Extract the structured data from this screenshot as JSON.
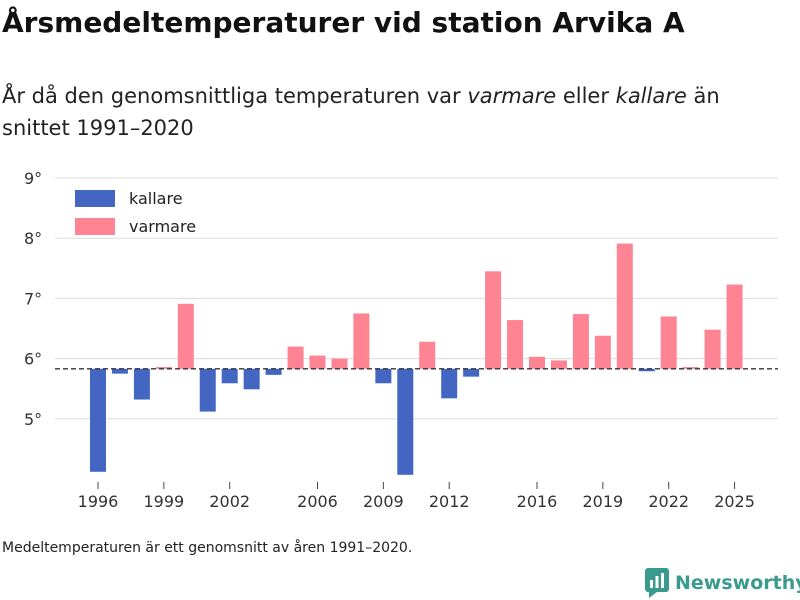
{
  "header": {
    "title": "Årsmedeltemperaturer vid station Arvika A",
    "subtitle_part1": "År då den genomsnittliga temperaturen var ",
    "subtitle_warm": "varmare",
    "subtitle_part2": " eller ",
    "subtitle_cold": "kallare",
    "subtitle_part3": " än snittet 1991–2020"
  },
  "footer": {
    "note": "Medeltemperaturen är ett genomsnitt av åren 1991–2020.",
    "brand": "Newsworthy"
  },
  "colors": {
    "cold": "#4266c2",
    "warm": "#fe8494",
    "brand": "#3a9a8e"
  },
  "chart_data": {
    "type": "bar",
    "title": "Årsmedeltemperaturer vid station Arvika A",
    "baseline": 5.83,
    "ylim": [
      4.0,
      9.0
    ],
    "yticks": [
      5,
      6,
      7,
      8,
      9
    ],
    "ytick_labels": [
      "5°",
      "6°",
      "7°",
      "8°",
      "9°"
    ],
    "xticks": [
      1996,
      1999,
      2002,
      2006,
      2009,
      2012,
      2016,
      2019,
      2022,
      2025
    ],
    "xtick_labels": [
      "1996",
      "1999",
      "2002",
      "2006",
      "2009",
      "2012",
      "2016",
      "2019",
      "2022",
      "2025"
    ],
    "legend": [
      {
        "name": "kallare",
        "key": "cold"
      },
      {
        "name": "varmare",
        "key": "warm"
      }
    ],
    "x": [
      1996,
      1997,
      1998,
      1999,
      2000,
      2001,
      2002,
      2003,
      2004,
      2005,
      2006,
      2007,
      2008,
      2009,
      2010,
      2011,
      2012,
      2013,
      2014,
      2015,
      2016,
      2017,
      2018,
      2019,
      2020,
      2021,
      2022,
      2023,
      2024,
      2025
    ],
    "values": [
      4.12,
      5.75,
      5.32,
      5.86,
      6.91,
      5.12,
      5.59,
      5.49,
      5.73,
      6.2,
      6.05,
      6.0,
      6.75,
      5.59,
      4.07,
      6.28,
      5.34,
      5.7,
      7.45,
      6.64,
      6.03,
      5.97,
      6.74,
      6.38,
      7.91,
      5.79,
      6.7,
      5.86,
      6.48,
      7.23
    ]
  }
}
